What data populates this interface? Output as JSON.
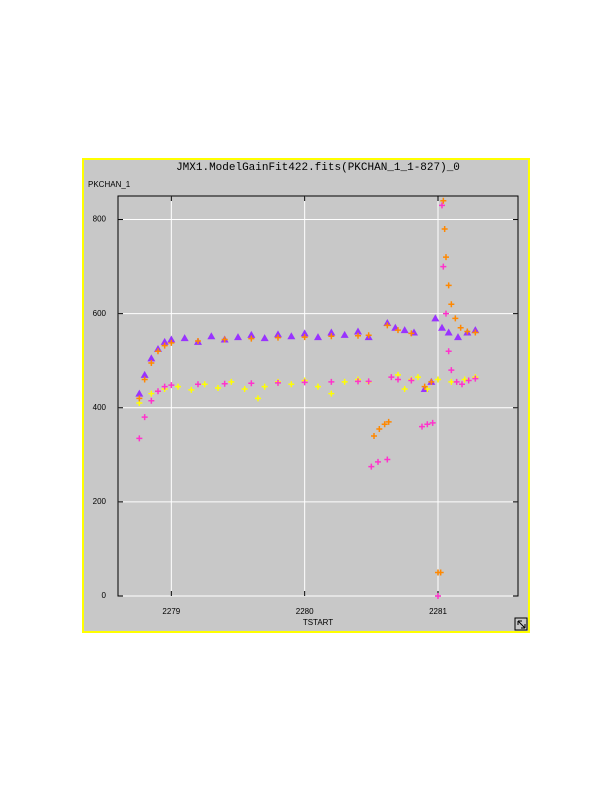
{
  "chart_data": {
    "type": "scatter",
    "title": "JMX1.ModelGainFit422.fits(PKCHAN_1_1-827)_0",
    "y_label": "PKCHAN_1",
    "x_label": "TSTART",
    "xlim": [
      2278.6,
      2281.6
    ],
    "ylim": [
      0,
      850
    ],
    "xticks": [
      2279,
      2280,
      2281
    ],
    "yticks": [
      0,
      200,
      400,
      600,
      800
    ],
    "grid": true,
    "series": [
      {
        "color": "#9933ff",
        "marker": "triangle",
        "x": [
          2278.76,
          2278.8,
          2278.85,
          2278.9,
          2278.95,
          2279.0,
          2279.1,
          2279.2,
          2279.3,
          2279.4,
          2279.5,
          2279.6,
          2279.7,
          2279.8,
          2279.9,
          2280.0,
          2280.1,
          2280.2,
          2280.3,
          2280.4,
          2280.48,
          2280.62,
          2280.68,
          2280.75,
          2280.82,
          2280.9,
          2280.95,
          2280.98,
          2281.03,
          2281.08,
          2281.15,
          2281.22,
          2281.28
        ],
        "values": [
          430,
          470,
          505,
          525,
          540,
          545,
          548,
          540,
          552,
          545,
          550,
          555,
          548,
          556,
          552,
          558,
          550,
          560,
          555,
          562,
          550,
          580,
          570,
          565,
          560,
          440,
          455,
          590,
          570,
          560,
          550,
          560,
          565
        ]
      },
      {
        "color": "#ffff00",
        "marker": "plus",
        "x": [
          2278.76,
          2278.85,
          2278.95,
          2279.05,
          2279.15,
          2279.25,
          2279.35,
          2279.45,
          2279.55,
          2279.65,
          2279.7,
          2279.8,
          2279.9,
          2280.0,
          2280.1,
          2280.2,
          2280.3,
          2280.4,
          2280.48,
          2280.7,
          2280.75,
          2280.8,
          2280.85,
          2280.92,
          2281.0,
          2281.1,
          2281.2,
          2281.28
        ],
        "values": [
          410,
          430,
          440,
          445,
          438,
          450,
          442,
          455,
          440,
          420,
          445,
          455,
          450,
          458,
          445,
          430,
          455,
          460,
          455,
          470,
          440,
          460,
          465,
          440,
          460,
          455,
          460,
          465
        ]
      },
      {
        "color": "#ff33cc",
        "marker": "plus",
        "x": [
          2278.76,
          2278.8,
          2278.85,
          2278.9,
          2278.95,
          2279.0,
          2279.2,
          2279.4,
          2279.6,
          2279.8,
          2280.0,
          2280.2,
          2280.4,
          2280.48,
          2280.5,
          2280.55,
          2280.62,
          2280.65,
          2280.7,
          2280.8,
          2280.88,
          2280.92,
          2280.96,
          2281.0,
          2281.03,
          2281.04,
          2281.06,
          2281.08,
          2281.1,
          2281.14,
          2281.18,
          2281.23,
          2281.28
        ],
        "values": [
          335,
          380,
          415,
          435,
          445,
          448,
          450,
          451,
          452,
          453,
          454,
          455,
          456,
          456,
          275,
          285,
          290,
          465,
          460,
          458,
          360,
          365,
          368,
          0,
          830,
          700,
          600,
          520,
          480,
          455,
          450,
          458,
          462
        ]
      },
      {
        "color": "#ff8800",
        "marker": "plus",
        "x": [
          2278.76,
          2278.8,
          2278.85,
          2278.9,
          2278.95,
          2279.0,
          2279.2,
          2279.4,
          2279.6,
          2279.8,
          2280.0,
          2280.2,
          2280.4,
          2280.48,
          2280.52,
          2280.56,
          2280.6,
          2280.63,
          2280.62,
          2280.7,
          2280.8,
          2280.9,
          2280.95,
          2281.0,
          2281.02,
          2281.04,
          2281.05,
          2281.06,
          2281.08,
          2281.1,
          2281.13,
          2281.17,
          2281.22,
          2281.28
        ],
        "values": [
          420,
          460,
          495,
          520,
          532,
          538,
          542,
          545,
          547,
          549,
          550,
          552,
          553,
          554,
          340,
          355,
          365,
          370,
          575,
          565,
          558,
          445,
          455,
          50,
          50,
          840,
          780,
          720,
          660,
          620,
          590,
          570,
          562,
          560
        ]
      }
    ]
  }
}
